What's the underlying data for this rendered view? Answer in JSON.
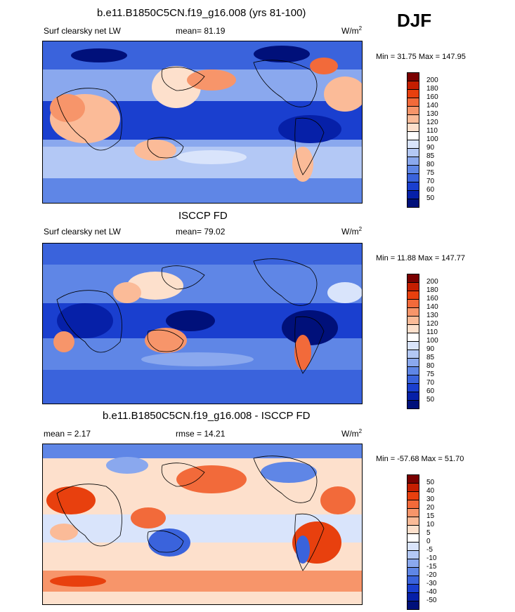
{
  "season": "DJF",
  "panels": [
    {
      "title": "b.e11.B1850C5CN.f19_g16.008 (yrs 81-100)",
      "left_label": "Surf clearsky net LW",
      "stat_label": "mean=  81.19",
      "units_base": "W/m",
      "units_sup": "2",
      "minmax": "Min =  31.75 Max = 147.95",
      "colorbar_labels": [
        "200",
        "180",
        "160",
        "140",
        "130",
        "120",
        "110",
        "100",
        "90",
        "85",
        "80",
        "75",
        "70",
        "60",
        "50"
      ]
    },
    {
      "title": "ISCCP FD",
      "left_label": "Surf clearsky net LW",
      "stat_label": "mean=  79.02",
      "units_base": "W/m",
      "units_sup": "2",
      "minmax": "Min =  11.88 Max = 147.77",
      "colorbar_labels": [
        "200",
        "180",
        "160",
        "140",
        "130",
        "120",
        "110",
        "100",
        "90",
        "85",
        "80",
        "75",
        "70",
        "60",
        "50"
      ]
    },
    {
      "title": "b.e11.B1850C5CN.f19_g16.008 - ISCCP FD",
      "left_label": "mean =  2.17",
      "stat_label": "rmse =  14.21",
      "units_base": "W/m",
      "units_sup": "2",
      "minmax": "Min = -57.68 Max =  51.70",
      "colorbar_labels": [
        "50",
        "40",
        "30",
        "20",
        "15",
        "10",
        "5",
        "0",
        "-5",
        "-10",
        "-15",
        "-20",
        "-30",
        "-40",
        "-50"
      ]
    }
  ],
  "colorbar_colors": [
    "#7a0000",
    "#c41e00",
    "#e8400e",
    "#f26a3a",
    "#f7956a",
    "#fbbb98",
    "#fde0cc",
    "#ffffff",
    "#d9e4fb",
    "#b3c8f5",
    "#8aa8ee",
    "#5f86e6",
    "#3a63dc",
    "#1a3fcf",
    "#0620a8",
    "#00107a"
  ],
  "chart_data": [
    {
      "type": "heatmap",
      "title": "b.e11.B1850C5CN.f19_g16.008 (yrs 81-100)",
      "variable": "Surf clearsky net LW",
      "season": "DJF",
      "mean": 81.19,
      "min": 31.75,
      "max": 147.95,
      "units": "W/m2",
      "contour_levels": [
        50,
        60,
        70,
        75,
        80,
        85,
        90,
        100,
        110,
        120,
        130,
        140,
        160,
        180,
        200
      ]
    },
    {
      "type": "heatmap",
      "title": "ISCCP FD",
      "variable": "Surf clearsky net LW",
      "season": "DJF",
      "mean": 79.02,
      "min": 11.88,
      "max": 147.77,
      "units": "W/m2",
      "contour_levels": [
        50,
        60,
        70,
        75,
        80,
        85,
        90,
        100,
        110,
        120,
        130,
        140,
        160,
        180,
        200
      ]
    },
    {
      "type": "heatmap",
      "title": "b.e11.B1850C5CN.f19_g16.008 - ISCCP FD",
      "season": "DJF",
      "mean": 2.17,
      "rmse": 14.21,
      "min": -57.68,
      "max": 51.7,
      "units": "W/m2",
      "contour_levels": [
        -50,
        -40,
        -30,
        -20,
        -15,
        -10,
        -5,
        0,
        5,
        10,
        15,
        20,
        30,
        40,
        50
      ]
    }
  ]
}
